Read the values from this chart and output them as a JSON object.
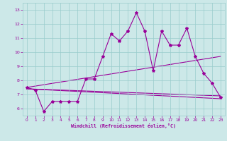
{
  "title": "",
  "xlabel": "Windchill (Refroidissement éolien,°C)",
  "bg_color": "#cce8e8",
  "grid_color": "#99cccc",
  "line_color": "#990099",
  "xlim": [
    -0.5,
    23.5
  ],
  "ylim": [
    5.5,
    13.5
  ],
  "yticks": [
    6,
    7,
    8,
    9,
    10,
    11,
    12,
    13
  ],
  "xticks": [
    0,
    1,
    2,
    3,
    4,
    5,
    6,
    7,
    8,
    9,
    10,
    11,
    12,
    13,
    14,
    15,
    16,
    17,
    18,
    19,
    20,
    21,
    22,
    23
  ],
  "main_series": {
    "x": [
      0,
      1,
      2,
      3,
      4,
      5,
      6,
      7,
      8,
      9,
      10,
      11,
      12,
      13,
      14,
      15,
      16,
      17,
      18,
      19,
      20,
      21,
      22,
      23
    ],
    "y": [
      7.5,
      7.3,
      5.8,
      6.5,
      6.5,
      6.5,
      6.5,
      8.1,
      8.1,
      9.7,
      11.3,
      10.8,
      11.5,
      12.8,
      11.5,
      8.7,
      11.5,
      10.5,
      10.5,
      11.7,
      9.7,
      8.5,
      7.8,
      6.8
    ]
  },
  "trend_lines": [
    {
      "x": [
        0,
        23
      ],
      "y": [
        7.5,
        9.7
      ]
    },
    {
      "x": [
        0,
        23
      ],
      "y": [
        7.4,
        6.9
      ]
    },
    {
      "x": [
        0,
        23
      ],
      "y": [
        7.4,
        6.7
      ]
    }
  ]
}
